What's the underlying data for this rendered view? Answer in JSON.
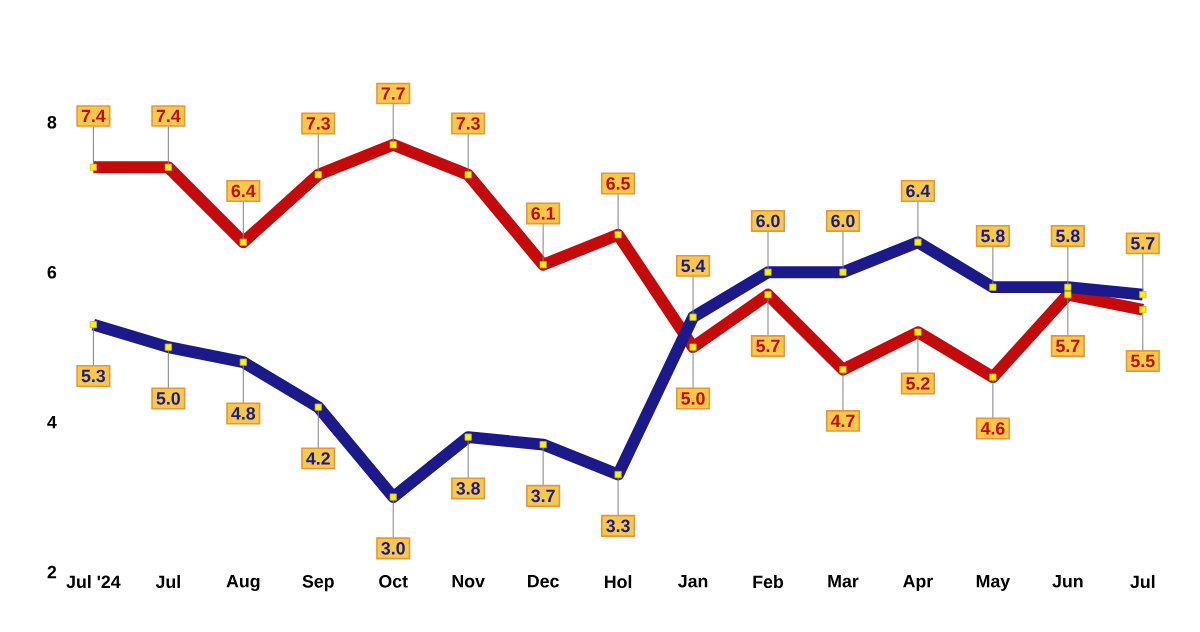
{
  "chart_data": {
    "type": "line",
    "categories": [
      "Jul '24",
      "Jul",
      "Aug",
      "Sep",
      "Oct",
      "Nov",
      "Dec",
      "Hol",
      "Jan",
      "Feb",
      "Mar",
      "Apr",
      "May",
      "Jun",
      "Jul"
    ],
    "series": [
      {
        "color": "#c40a0a",
        "values": [
          7.4,
          7.4,
          6.4,
          7.3,
          7.7,
          7.3,
          6.1,
          6.5,
          5.0,
          5.7,
          4.7,
          5.2,
          4.6,
          5.7,
          5.5
        ],
        "value_labels": [
          "7.4",
          "7.4",
          "6.4",
          "7.3",
          "7.7",
          "7.3",
          "6.1",
          "6.5",
          "5.0",
          "5.7",
          "4.7",
          "5.2",
          "4.6",
          "5.7",
          "5.5"
        ]
      },
      {
        "color": "#1c1a8a",
        "values": [
          5.3,
          5.0,
          4.8,
          4.2,
          3.0,
          3.8,
          3.7,
          3.3,
          5.4,
          6.0,
          6.0,
          6.4,
          5.8,
          5.8,
          5.7
        ],
        "value_labels": [
          "5.3",
          "5.0",
          "4.8",
          "4.2",
          "3.0",
          "3.8",
          "3.7",
          "3.3",
          "5.4",
          "6.0",
          "6.0",
          "6.4",
          "5.8",
          "5.8",
          "5.7"
        ]
      }
    ],
    "ylim": [
      2,
      8
    ],
    "yticks": [
      2,
      4,
      6,
      8
    ],
    "marker": "square",
    "line_style": "solid"
  }
}
